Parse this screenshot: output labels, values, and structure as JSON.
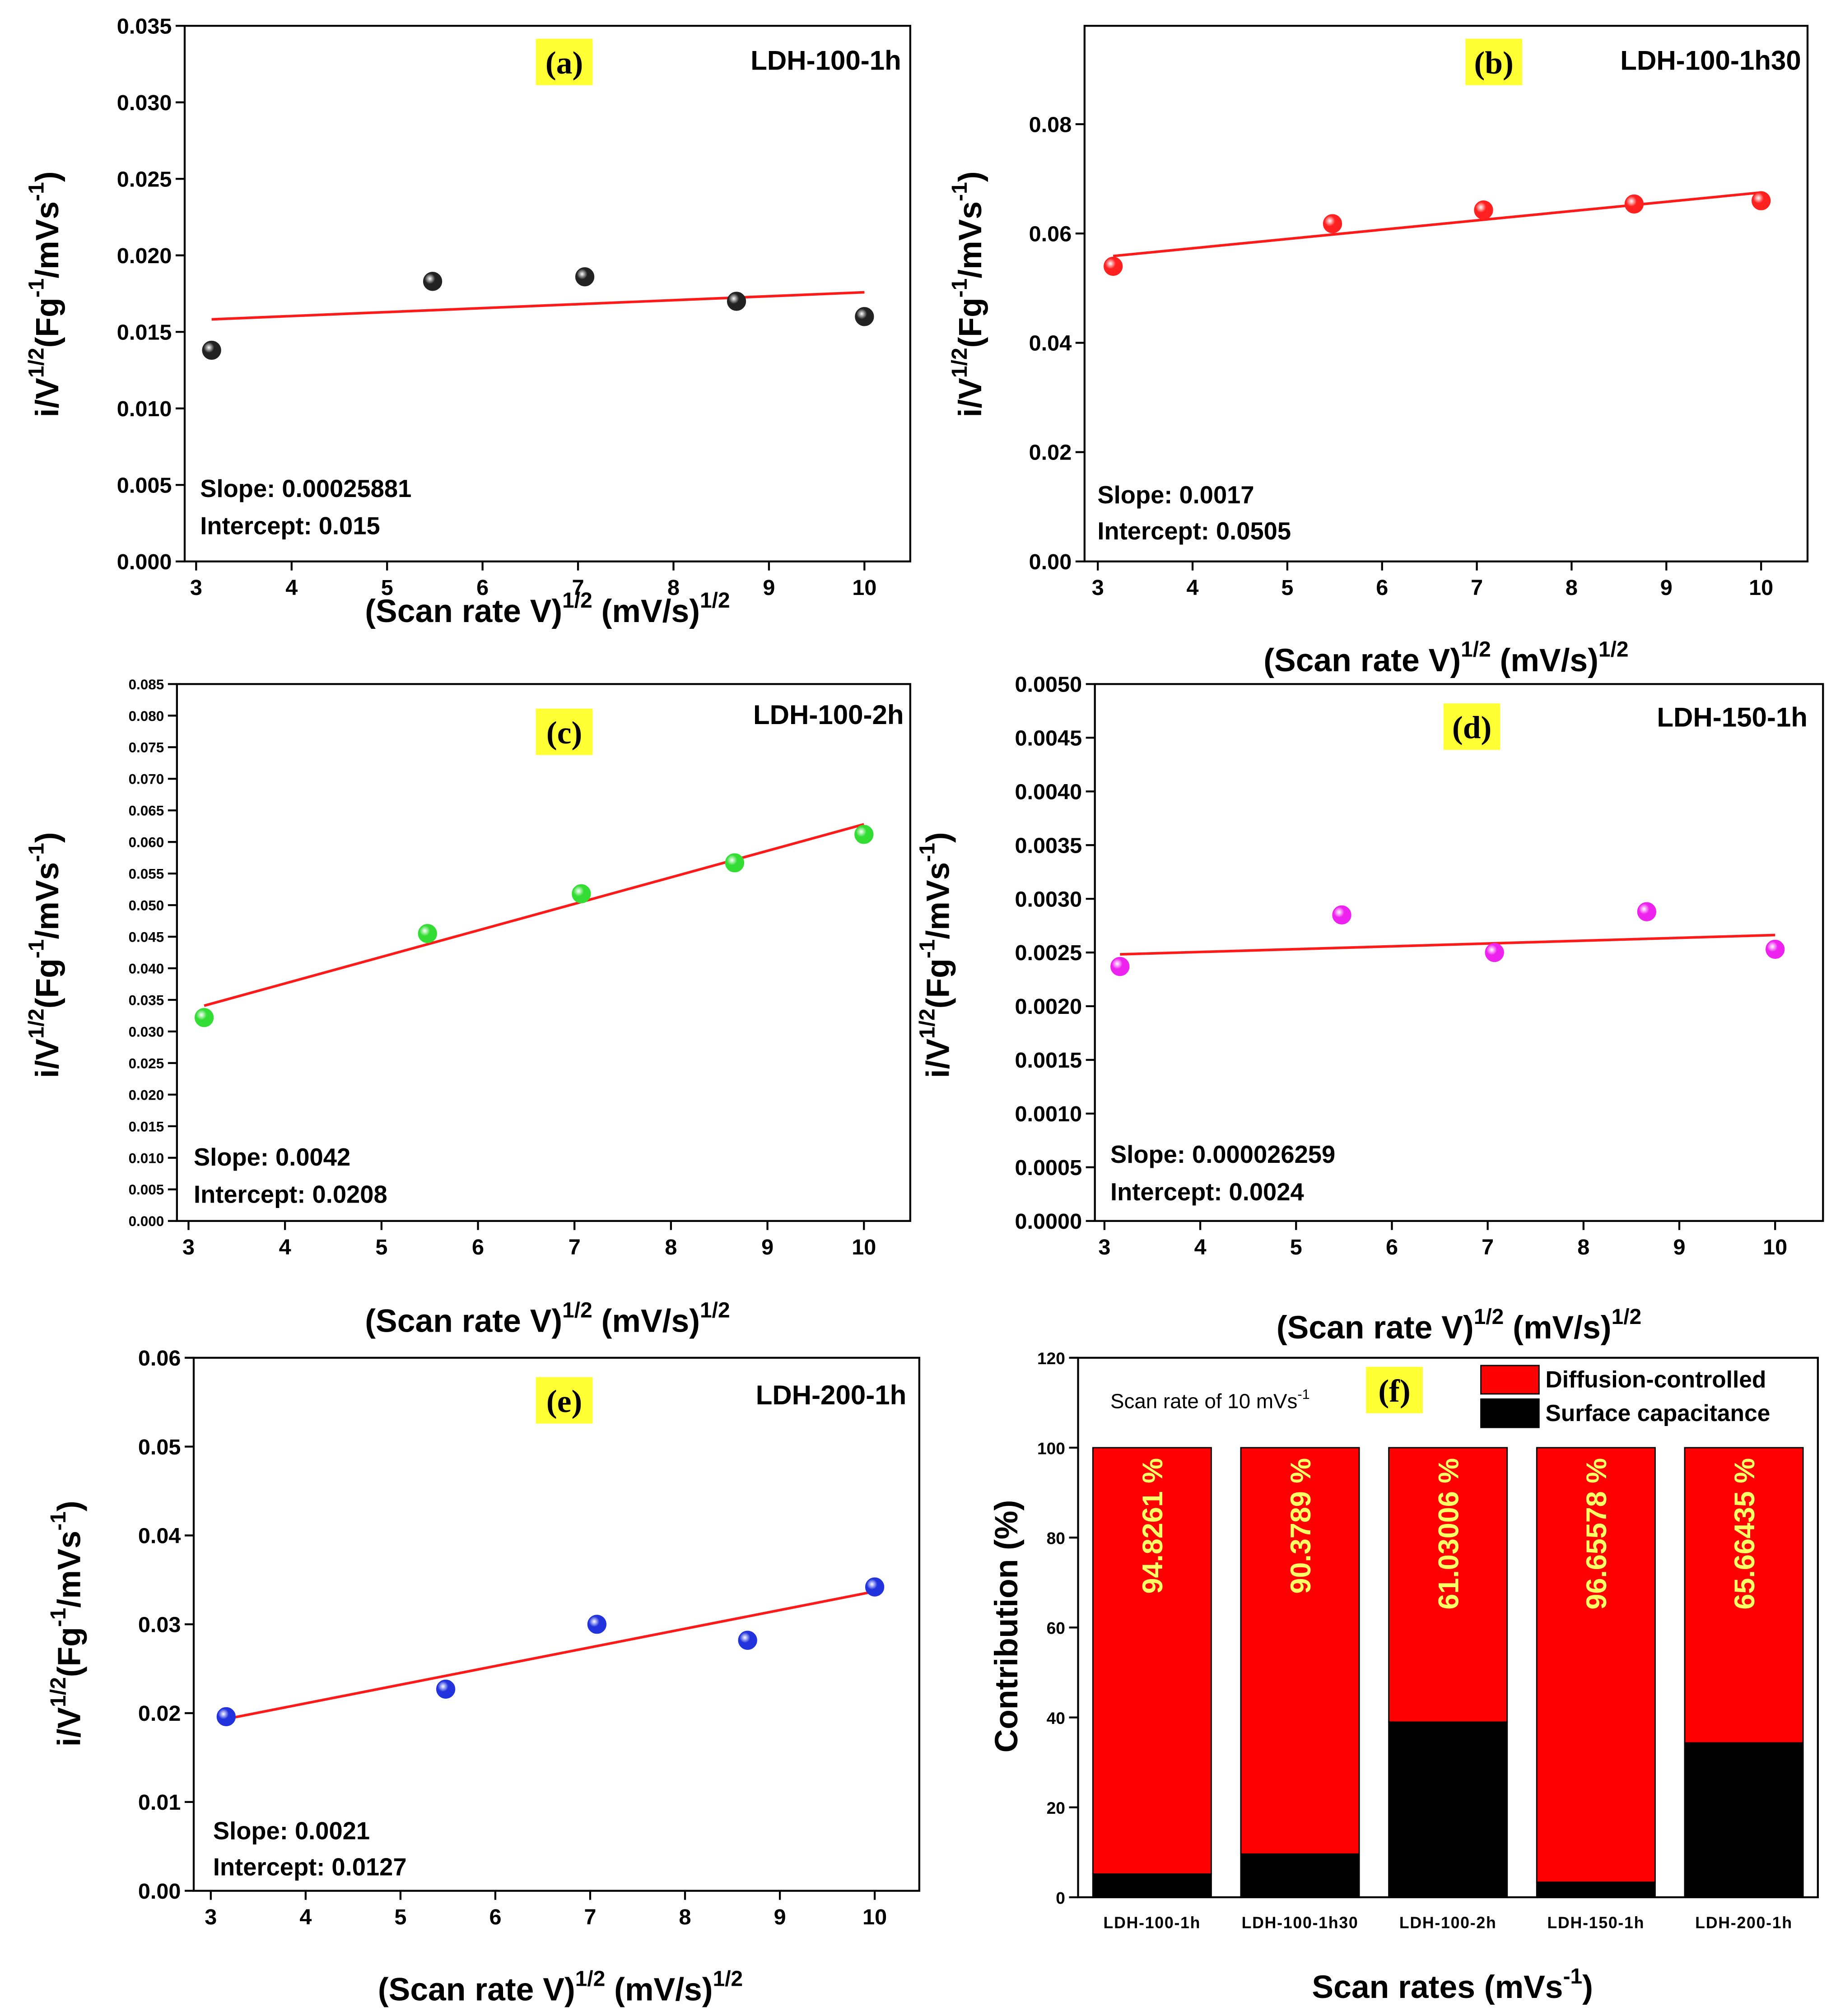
{
  "chart_data": [
    {
      "type": "scatter",
      "tag": "(a)",
      "annotation": "LDH-100-1h",
      "x": [
        3.162,
        5.477,
        7.071,
        8.66,
        10
      ],
      "values": [
        0.0138,
        0.0183,
        0.0186,
        0.017,
        0.016
      ],
      "color": "#222222",
      "fit": {
        "slope": 0.00025881,
        "intercept": 0.015,
        "color": "#ff1a1a",
        "value_labels": [
          "Slope: 0.00025881",
          "Intercept: 0.015"
        ]
      },
      "xlim": [
        2.88,
        10.48
      ],
      "xticks": [
        3,
        4,
        5,
        6,
        7,
        8,
        9,
        10
      ],
      "ylim": [
        0,
        0.035
      ],
      "yticks": [
        {
          "value": 0,
          "label": "0.000"
        },
        {
          "value": 0.005,
          "label": "0.005"
        },
        {
          "value": 0.01,
          "label": "0.010"
        },
        {
          "value": 0.015,
          "label": "0.015"
        },
        {
          "value": 0.02,
          "label": "0.020"
        },
        {
          "value": 0.025,
          "label": "0.025"
        },
        {
          "value": 0.03,
          "label": "0.030"
        },
        {
          "value": 0.035,
          "label": "0.035"
        }
      ],
      "x_label": [
        {
          "text": "(Scan rate V)"
        },
        {
          "text": "1/2",
          "sup": true
        },
        {
          "text": " (mV/s)"
        },
        {
          "text": "1/2",
          "sup": true
        }
      ],
      "y_label": [
        {
          "text": "i/V"
        },
        {
          "text": "1/2",
          "sup": true
        },
        {
          "text": "(Fg"
        },
        {
          "text": "-1",
          "sup": true
        },
        {
          "text": "/mVs"
        },
        {
          "text": "-1",
          "sup": true
        },
        {
          "text": ")"
        }
      ]
    },
    {
      "type": "scatter",
      "tag": "(b)",
      "annotation": "LDH-100-1h30",
      "x": [
        3.162,
        5.477,
        7.071,
        8.66,
        10
      ],
      "values": [
        0.054,
        0.0618,
        0.0643,
        0.0654,
        0.066
      ],
      "color": "#ff2020",
      "fit": {
        "slope": 0.0017,
        "intercept": 0.0505,
        "color": "#ff1a1a",
        "value_labels": [
          "Slope: 0.0017",
          "Intercept: 0.0505"
        ]
      },
      "xlim": [
        2.86,
        10.49
      ],
      "xticks": [
        3,
        4,
        5,
        6,
        7,
        8,
        9,
        10
      ],
      "ylim": [
        0,
        0.098
      ],
      "yticks": [
        {
          "value": 0,
          "label": "0.00"
        },
        {
          "value": 0.02,
          "label": "0.02"
        },
        {
          "value": 0.04,
          "label": "0.04"
        },
        {
          "value": 0.06,
          "label": "0.06"
        },
        {
          "value": 0.08,
          "label": "0.08"
        }
      ],
      "x_label": [
        {
          "text": "(Scan rate V)"
        },
        {
          "text": "1/2",
          "sup": true
        },
        {
          "text": " (mV/s)"
        },
        {
          "text": "1/2",
          "sup": true
        }
      ],
      "y_label": [
        {
          "text": "i/V"
        },
        {
          "text": "1/2",
          "sup": true
        },
        {
          "text": "(Fg"
        },
        {
          "text": "-1",
          "sup": true
        },
        {
          "text": "/mVs"
        },
        {
          "text": "-1",
          "sup": true
        },
        {
          "text": ")"
        }
      ]
    },
    {
      "type": "scatter",
      "tag": "(c)",
      "annotation": "LDH-100-2h",
      "x": [
        3.162,
        5.477,
        7.071,
        8.66,
        10
      ],
      "values": [
        0.0322,
        0.0455,
        0.0518,
        0.0567,
        0.0612
      ],
      "color": "#33dd33",
      "fit": {
        "slope": 0.0042,
        "intercept": 0.0208,
        "color": "#ff1a1a",
        "value_labels": [
          "Slope: 0.0042",
          "Intercept: 0.0208"
        ]
      },
      "xlim": [
        2.88,
        10.48
      ],
      "xticks": [
        3,
        4,
        5,
        6,
        7,
        8,
        9,
        10
      ],
      "ylim": [
        0,
        0.085
      ],
      "yticks": [
        {
          "value": 0,
          "label": "0.000"
        },
        {
          "value": 0.005,
          "label": "0.005"
        },
        {
          "value": 0.01,
          "label": "0.010"
        },
        {
          "value": 0.015,
          "label": "0.015"
        },
        {
          "value": 0.02,
          "label": "0.020"
        },
        {
          "value": 0.025,
          "label": "0.025"
        },
        {
          "value": 0.03,
          "label": "0.030"
        },
        {
          "value": 0.035,
          "label": "0.035"
        },
        {
          "value": 0.04,
          "label": "0.040"
        },
        {
          "value": 0.045,
          "label": "0.045"
        },
        {
          "value": 0.05,
          "label": "0.050"
        },
        {
          "value": 0.055,
          "label": "0.055"
        },
        {
          "value": 0.06,
          "label": "0.060"
        },
        {
          "value": 0.065,
          "label": "0.065"
        },
        {
          "value": 0.07,
          "label": "0.070"
        },
        {
          "value": 0.075,
          "label": "0.075"
        },
        {
          "value": 0.08,
          "label": "0.080"
        },
        {
          "value": 0.085,
          "label": "0.085"
        }
      ],
      "x_label": [
        {
          "text": "(Scan rate V)"
        },
        {
          "text": "1/2",
          "sup": true
        },
        {
          "text": " (mV/s)"
        },
        {
          "text": "1/2",
          "sup": true
        }
      ],
      "y_label": [
        {
          "text": "i/V"
        },
        {
          "text": "1/2",
          "sup": true
        },
        {
          "text": "(Fg"
        },
        {
          "text": "-1",
          "sup": true
        },
        {
          "text": "/mVs"
        },
        {
          "text": "-1",
          "sup": true
        },
        {
          "text": ")"
        }
      ]
    },
    {
      "type": "scatter",
      "tag": "(d)",
      "annotation": "LDH-150-1h",
      "x": [
        3.162,
        5.477,
        7.071,
        8.66,
        10
      ],
      "values": [
        0.00237,
        0.00285,
        0.0025,
        0.00288,
        0.00253
      ],
      "color": "#ee22ee",
      "fit": {
        "slope": 2.6259e-05,
        "intercept": 0.0024,
        "color": "#ff1a1a",
        "value_labels": [
          "Slope: 0.000026259",
          "Intercept: 0.0024"
        ]
      },
      "xlim": [
        2.9,
        10.5
      ],
      "xticks": [
        3,
        4,
        5,
        6,
        7,
        8,
        9,
        10
      ],
      "ylim": [
        0,
        0.005
      ],
      "yticks": [
        {
          "value": 0,
          "label": "0.0000"
        },
        {
          "value": 0.0005,
          "label": "0.0005"
        },
        {
          "value": 0.001,
          "label": "0.0010"
        },
        {
          "value": 0.0015,
          "label": "0.0015"
        },
        {
          "value": 0.002,
          "label": "0.0020"
        },
        {
          "value": 0.0025,
          "label": "0.0025"
        },
        {
          "value": 0.003,
          "label": "0.0030"
        },
        {
          "value": 0.0035,
          "label": "0.0035"
        },
        {
          "value": 0.004,
          "label": "0.0040"
        },
        {
          "value": 0.0045,
          "label": "0.0045"
        },
        {
          "value": 0.005,
          "label": "0.0050"
        }
      ],
      "x_label": [
        {
          "text": "(Scan rate V)"
        },
        {
          "text": "1/2",
          "sup": true
        },
        {
          "text": " (mV/s)"
        },
        {
          "text": "1/2",
          "sup": true
        }
      ],
      "y_label": [
        {
          "text": "i/V"
        },
        {
          "text": "1/2",
          "sup": true
        },
        {
          "text": "(Fg"
        },
        {
          "text": "-1",
          "sup": true
        },
        {
          "text": "/mVs"
        },
        {
          "text": "-1",
          "sup": true
        },
        {
          "text": ")"
        }
      ]
    },
    {
      "type": "scatter",
      "tag": "(e)",
      "annotation": "LDH-200-1h",
      "x": [
        3.162,
        5.477,
        7.071,
        8.66,
        10
      ],
      "values": [
        0.0196,
        0.0227,
        0.03,
        0.0282,
        0.0342
      ],
      "color": "#2233dd",
      "fit": {
        "slope": 0.0021,
        "intercept": 0.0127,
        "color": "#ff1a1a",
        "value_labels": [
          "Slope: 0.0021",
          "Intercept: 0.0127"
        ]
      },
      "xlim": [
        2.82,
        10.47
      ],
      "xticks": [
        3,
        4,
        5,
        6,
        7,
        8,
        9,
        10
      ],
      "ylim": [
        0,
        0.06
      ],
      "yticks": [
        {
          "value": 0,
          "label": "0.00"
        },
        {
          "value": 0.01,
          "label": "0.01"
        },
        {
          "value": 0.02,
          "label": "0.02"
        },
        {
          "value": 0.03,
          "label": "0.03"
        },
        {
          "value": 0.04,
          "label": "0.04"
        },
        {
          "value": 0.05,
          "label": "0.05"
        },
        {
          "value": 0.06,
          "label": "0.06"
        }
      ],
      "x_label": [
        {
          "text": "(Scan rate V)"
        },
        {
          "text": "1/2",
          "sup": true
        },
        {
          "text": " (mV/s)"
        },
        {
          "text": "1/2",
          "sup": true
        }
      ],
      "y_label": [
        {
          "text": "i/V"
        },
        {
          "text": "1/2",
          "sup": true
        },
        {
          "text": "(Fg"
        },
        {
          "text": "-1",
          "sup": true
        },
        {
          "text": "/mVs"
        },
        {
          "text": "-1",
          "sup": true
        },
        {
          "text": ")"
        }
      ]
    },
    {
      "type": "stacked_bar",
      "tag": "(f)",
      "annotation": [
        {
          "text": "Scan rate of 10 mVs"
        },
        {
          "text": "-1",
          "sup": true
        }
      ],
      "categories": [
        "LDH-100-1h",
        "LDH-100-1h30",
        "LDH-100-2h",
        "LDH-150-1h",
        "LDH-200-1h"
      ],
      "series": [
        {
          "name": "Diffusion-controlled",
          "color": "#ff0000",
          "values": [
            94.8261,
            90.3789,
            61.03006,
            96.65578,
            65.66435
          ],
          "value_labels": [
            "94.8261 %",
            "90.3789 %",
            "61.03006 %",
            "96.65578 %",
            "65.66435 %"
          ],
          "label_color": "#ffff66"
        },
        {
          "name": "Surface capacitance",
          "color": "#000000",
          "values": [
            5.1739,
            9.6211,
            38.96994,
            3.34422,
            34.33565
          ]
        }
      ],
      "ylim": [
        0,
        120
      ],
      "yticks": [
        0,
        20,
        40,
        60,
        80,
        100,
        120
      ],
      "x_label": [
        {
          "text": "Scan rates (mVs"
        },
        {
          "text": "-1",
          "sup": true
        },
        {
          "text": ")"
        }
      ],
      "y_label": [
        {
          "text": "Contribution (%)"
        }
      ]
    }
  ]
}
